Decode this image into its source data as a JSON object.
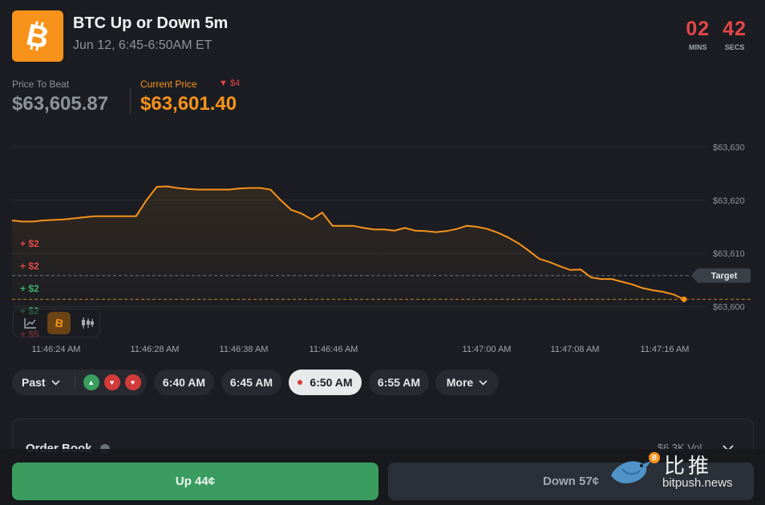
{
  "header": {
    "title": "BTC Up or Down 5m",
    "subtitle": "Jun 12, 6:45-6:50AM ET",
    "countdown": {
      "mins": "02",
      "mins_label": "MINS",
      "secs": "42",
      "secs_label": "SECS"
    }
  },
  "prices": {
    "beat_label": "Price To Beat",
    "beat_value": "$63,605.87",
    "current_label": "Current Price",
    "current_diff": "▼ $4",
    "current_value": "$63,601.40"
  },
  "chart": {
    "y_ticks": [
      "$63,630",
      "$63,620",
      "$63,610",
      "$63,600"
    ],
    "x_ticks": [
      "11:46:24 AM",
      "11:46:28 AM",
      "11:46:38 AM",
      "11:46:46 AM",
      "11:47:00 AM",
      "11:47:08 AM",
      "11:47:16 AM"
    ],
    "target_label": "Target",
    "deltas": [
      "+ $2",
      "+ $2",
      "+ $2",
      "+ $2",
      "+ $5"
    ]
  },
  "chart_data": {
    "type": "line",
    "y_range": [
      63598,
      63632
    ],
    "target_price": 63605.87,
    "series": [
      {
        "values": [
          63616.2,
          63616.0,
          63616.0,
          63616.2,
          63616.3,
          63616.4,
          63616.6,
          63616.8,
          63617.0,
          63617.0,
          63617.0,
          63617.0,
          63617.0,
          63620.0,
          63622.5,
          63622.6,
          63622.3,
          63622.1,
          63622.0,
          63622.0,
          63622.0,
          63622.0,
          63622.2,
          63622.3,
          63622.3,
          63622.0,
          63620.0,
          63618.2,
          63617.5,
          63616.4,
          63617.7,
          63615.2,
          63615.2,
          63615.2,
          63614.8,
          63614.5,
          63614.5,
          63614.3,
          63614.8,
          63614.3,
          63614.2,
          63614.0,
          63614.2,
          63614.6,
          63615.2,
          63615.0,
          63614.6,
          63613.9,
          63613.0,
          63611.9,
          63610.5,
          63609.0,
          63608.4,
          63607.6,
          63606.9,
          63607.0,
          63605.5,
          63605.2,
          63605.2,
          63604.7,
          63604.2,
          63603.5,
          63603.1,
          63602.8,
          63602.3,
          63601.4
        ]
      }
    ]
  },
  "tools": {
    "line_icon": "line-chart-icon",
    "btc_icon": "bitcoin-icon",
    "candle_icon": "candlestick-icon"
  },
  "pills": {
    "past": "Past",
    "t1": "6:40 AM",
    "t2": "6:45 AM",
    "t3": "6:50 AM",
    "t4": "6:55 AM",
    "more": "More"
  },
  "orderbook": {
    "title": "Order Book",
    "volume": "$6.3K Vol."
  },
  "buttons": {
    "up": "Up 44¢",
    "down": "Down 57¢"
  },
  "watermark": {
    "cn": "比推",
    "en": "bitpush.news"
  },
  "colors": {
    "accent": "#f7931a",
    "up": "#3a9d5f",
    "down": "#e44848",
    "bg": "#1b1d22"
  }
}
